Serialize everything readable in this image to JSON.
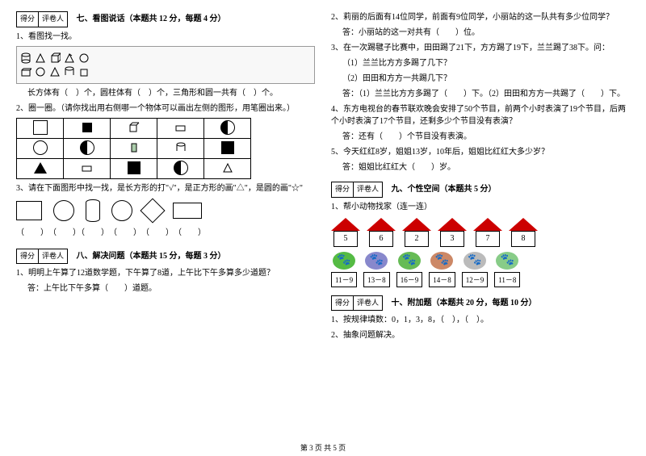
{
  "left": {
    "section7": {
      "title": "七、看图说话（本题共 12 分，每题 4 分）"
    },
    "q1": {
      "text": "1、看图找一找。",
      "caption": "长方体有（　）个，圆柱体有（　）个，三角形和圆一共有（　）个。"
    },
    "q2": {
      "text": "2、圈一圈。（请你找出用右侧哪一个物体可以画出左侧的图形，用笔圈出来。）"
    },
    "q3": {
      "text": "3、请在下面图形中找一找，是长方形的打\"√\"，是正方形的画\"△\"，是圆的画\"☆\""
    },
    "brackets": "（　　）　（　　）（　　）　（　　）　（　　）　（　　）",
    "section8": {
      "title": "八、解决问题（本题共 15 分，每题 3 分）"
    },
    "q8_1": {
      "text": "1、明明上午算了12道数学题，下午算了8道，上午比下午多算多少道题？",
      "answer": "答：上午比下午多算（　　）道题。"
    }
  },
  "right": {
    "q2": {
      "text": "2、莉丽的后面有14位同学，前面有9位同学，小丽站的这一队共有多少位同学？",
      "answer": "答：小丽站的这一对共有（　　）位。"
    },
    "q3": {
      "text": "3、在一次踢毽子比赛中，田田踢了21下，方方踢了19下，兰兰踢了38下。问：",
      "sub1": "（1）兰兰比方方多踢了几下？",
      "sub2": "（2）田田和方方一共踢几下？",
      "answer": "答：（1）兰兰比方方多踢了（　　）下。（2）田田和方方一共踢了（　　）下。"
    },
    "q4": {
      "text": "4、东方电视台的春节联欢晚会安排了50个节目，前两个小时表演了19个节目，后两个小时表演了17个节目，还剩多少个节目没有表演？",
      "answer": "答：还有（　　）个节目没有表演。"
    },
    "q5": {
      "text": "5、今天红红8岁，姐姐13岁，10年后，姐姐比红红大多少岁？",
      "answer": "答：姐姐比红红大（　　）岁。"
    },
    "section9": {
      "title": "九、个性空间（本题共 5 分）"
    },
    "q9_1": {
      "text": "1、帮小动物找家（连一连）"
    },
    "houses": [
      "5",
      "6",
      "2",
      "3",
      "7",
      "8"
    ],
    "animals": [
      {
        "expr": "11－9",
        "color": "#5b4"
      },
      {
        "expr": "13－8",
        "color": "#88c"
      },
      {
        "expr": "16－9",
        "color": "#6b5"
      },
      {
        "expr": "14－8",
        "color": "#c86"
      },
      {
        "expr": "12－9",
        "color": "#bbb"
      },
      {
        "expr": "11－8",
        "color": "#8c8"
      }
    ],
    "section10": {
      "title": "十、附加题（本题共 20 分，每题 10 分）"
    },
    "q10_1": {
      "text": "1、按规律填数：0，1，3，8，（　），（　）。"
    },
    "q10_2": {
      "text": "2、抽象问题解决。"
    }
  },
  "scoreLabels": {
    "score": "得分",
    "reviewer": "评卷人"
  },
  "footer": "第 3 页 共 5 页"
}
